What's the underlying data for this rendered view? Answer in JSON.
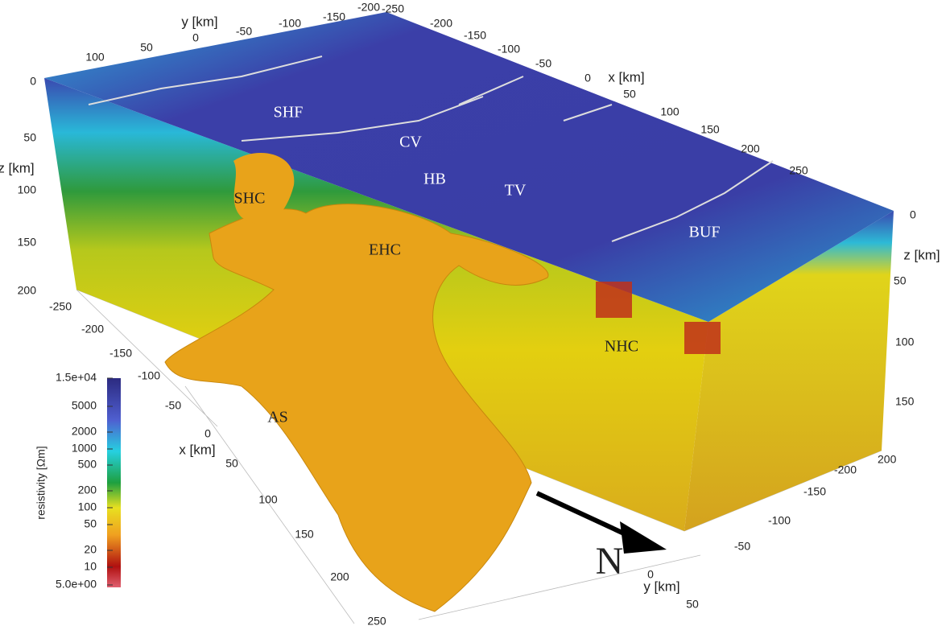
{
  "axes": {
    "y_top": {
      "label": "y [km]",
      "ticks": [
        "100",
        "50",
        "0",
        "-50",
        "-100",
        "-150",
        "-200",
        "-250"
      ]
    },
    "x_top": {
      "label": "x [km]",
      "ticks": [
        "-200",
        "-150",
        "-100",
        "-50",
        "0",
        "50",
        "100",
        "150",
        "200",
        "250"
      ]
    },
    "z_left": {
      "label": "z [km]",
      "ticks": [
        "0",
        "50",
        "100",
        "150",
        "200"
      ]
    },
    "z_right": {
      "label": "z [km]",
      "ticks": [
        "0",
        "50",
        "100",
        "150",
        "200"
      ]
    },
    "x_bottom": {
      "label": "x [km]",
      "ticks": [
        "-250",
        "-200",
        "-150",
        "-100",
        "-50",
        "0",
        "50",
        "100",
        "150",
        "200",
        "250"
      ]
    },
    "y_bottom": {
      "label": "y [km]",
      "ticks": [
        "-200",
        "-150",
        "-100",
        "-50",
        "0",
        "50"
      ]
    }
  },
  "features": {
    "white": [
      "SHF",
      "CV",
      "HB",
      "TV",
      "BUF"
    ],
    "black": [
      "SHC",
      "EHC",
      "NHC",
      "AS"
    ],
    "north": "N"
  },
  "colorbar": {
    "title": "resistivity [Ωm]",
    "ticks": [
      "1.5e+04",
      "5000",
      "2000",
      "1000",
      "500",
      "200",
      "100",
      "50",
      "20",
      "10",
      "5.0e+00"
    ]
  }
}
